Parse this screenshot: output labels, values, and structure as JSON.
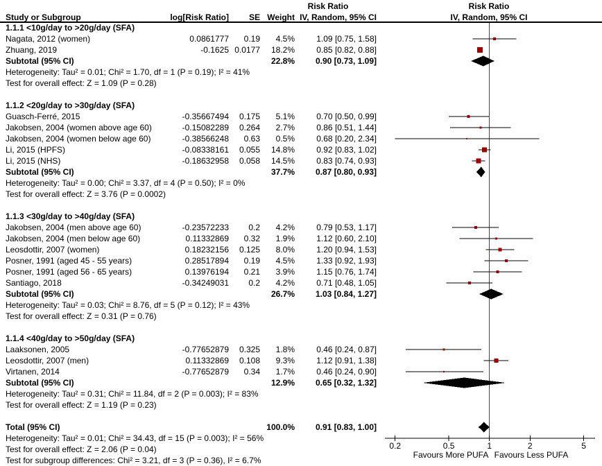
{
  "header": {
    "col_study": "Study or Subgroup",
    "col_logrr": "log[Risk Ratio]",
    "col_se": "SE",
    "col_weight": "Weight",
    "col_effect_line1": "Risk Ratio",
    "col_effect_line2": "IV, Random, 95% CI",
    "plot_line1": "Risk Ratio",
    "plot_line2": "IV, Random, 95% CI"
  },
  "axis": {
    "ticks": [
      0.2,
      0.5,
      1,
      2,
      5
    ],
    "left_label": "Favours More PUFA",
    "right_label": "Favours Less PUFA"
  },
  "colors": {
    "marker": "#a00000",
    "diamond": "#000000",
    "line": "#000000",
    "no_effect_line": "#444444"
  },
  "chart_data": {
    "type": "forest",
    "scale": "log",
    "x_range": [
      0.2,
      5
    ],
    "effect_measure": "Risk Ratio",
    "method": "IV, Random, 95% CI",
    "sections": [
      {
        "label": "1.1.1 <10g/day to >20g/day (SFA)",
        "studies": [
          {
            "name": "Nagata, 2012 (women)",
            "log_rr": "0.0861777",
            "se": "0.19",
            "weight_pct": 4.5,
            "rr": 1.09,
            "ci_low": 0.75,
            "ci_high": 1.58
          },
          {
            "name": "Zhuang, 2019",
            "log_rr": "-0.1625",
            "se": "0.0177",
            "weight_pct": 18.2,
            "rr": 0.85,
            "ci_low": 0.82,
            "ci_high": 0.88
          }
        ],
        "subtotal": {
          "label": "Subtotal (95% CI)",
          "weight_pct": 22.8,
          "rr": 0.9,
          "ci_low": 0.73,
          "ci_high": 1.09
        },
        "heterogeneity": "Heterogeneity: Tau² = 0.01; Chi² = 1.70, df = 1 (P = 0.19); I² = 41%",
        "overall_effect": "Test for overall effect: Z = 1.09 (P = 0.28)"
      },
      {
        "label": "1.1.2 <20g/day to >30g/day (SFA)",
        "studies": [
          {
            "name": "Guasch-Ferré, 2015",
            "log_rr": "-0.35667494",
            "se": "0.175",
            "weight_pct": 5.1,
            "rr": 0.7,
            "ci_low": 0.5,
            "ci_high": 0.99
          },
          {
            "name": "Jakobsen, 2004 (women above age 60)",
            "log_rr": "-0.15082289",
            "se": "0.264",
            "weight_pct": 2.7,
            "rr": 0.86,
            "ci_low": 0.51,
            "ci_high": 1.44
          },
          {
            "name": "Jakobsen, 2004 (women below age 60)",
            "log_rr": "-0.38566248",
            "se": "0.63",
            "weight_pct": 0.5,
            "rr": 0.68,
            "ci_low": 0.2,
            "ci_high": 2.34
          },
          {
            "name": "Li, 2015 (HPFS)",
            "log_rr": "-0.08338161",
            "se": "0.055",
            "weight_pct": 14.8,
            "rr": 0.92,
            "ci_low": 0.83,
            "ci_high": 1.02
          },
          {
            "name": "Li, 2015 (NHS)",
            "log_rr": "-0.18632958",
            "se": "0.058",
            "weight_pct": 14.5,
            "rr": 0.83,
            "ci_low": 0.74,
            "ci_high": 0.93
          }
        ],
        "subtotal": {
          "label": "Subtotal (95% CI)",
          "weight_pct": 37.7,
          "rr": 0.87,
          "ci_low": 0.8,
          "ci_high": 0.93
        },
        "heterogeneity": "Heterogeneity: Tau² = 0.00; Chi² = 3.37, df = 4 (P = 0.50); I² = 0%",
        "overall_effect": "Test for overall effect: Z = 3.76 (P = 0.0002)"
      },
      {
        "label": "1.1.3 <30g/day to >40g/day (SFA)",
        "studies": [
          {
            "name": "Jakobsen, 2004 (men above age 60)",
            "log_rr": "-0.23572233",
            "se": "0.2",
            "weight_pct": 4.2,
            "rr": 0.79,
            "ci_low": 0.53,
            "ci_high": 1.17
          },
          {
            "name": "Jakobsen, 2004 (men below age 60)",
            "log_rr": "0.11332869",
            "se": "0.32",
            "weight_pct": 1.9,
            "rr": 1.12,
            "ci_low": 0.6,
            "ci_high": 2.1
          },
          {
            "name": "Leosdottir, 2007 (women)",
            "log_rr": "0.18232156",
            "se": "0.125",
            "weight_pct": 8.0,
            "rr": 1.2,
            "ci_low": 0.94,
            "ci_high": 1.53
          },
          {
            "name": "Posner, 1991 (aged 45 - 55 years)",
            "log_rr": "0.28517894",
            "se": "0.19",
            "weight_pct": 4.5,
            "rr": 1.33,
            "ci_low": 0.92,
            "ci_high": 1.93
          },
          {
            "name": "Posner, 1991 (aged 56 - 65 years)",
            "log_rr": "0.13976194",
            "se": "0.21",
            "weight_pct": 3.9,
            "rr": 1.15,
            "ci_low": 0.76,
            "ci_high": 1.74
          },
          {
            "name": "Santiago, 2018",
            "log_rr": "-0.34249031",
            "se": "0.2",
            "weight_pct": 4.2,
            "rr": 0.71,
            "ci_low": 0.48,
            "ci_high": 1.05
          }
        ],
        "subtotal": {
          "label": "Subtotal (95% CI)",
          "weight_pct": 26.7,
          "rr": 1.03,
          "ci_low": 0.84,
          "ci_high": 1.27
        },
        "heterogeneity": "Heterogeneity: Tau² = 0.03; Chi² = 8.76, df = 5 (P = 0.12); I² = 43%",
        "overall_effect": "Test for overall effect: Z = 0.31 (P = 0.76)"
      },
      {
        "label": "1.1.4 <40g/day to >50g/day (SFA)",
        "studies": [
          {
            "name": "Laaksonen, 2005",
            "log_rr": "-0.77652879",
            "se": "0.325",
            "weight_pct": 1.8,
            "rr": 0.46,
            "ci_low": 0.24,
            "ci_high": 0.87
          },
          {
            "name": "Leosdottir, 2007 (men)",
            "log_rr": "0.11332869",
            "se": "0.108",
            "weight_pct": 9.3,
            "rr": 1.12,
            "ci_low": 0.91,
            "ci_high": 1.38
          },
          {
            "name": "Virtanen, 2014",
            "log_rr": "-0.77652879",
            "se": "0.34",
            "weight_pct": 1.7,
            "rr": 0.46,
            "ci_low": 0.24,
            "ci_high": 0.9
          }
        ],
        "subtotal": {
          "label": "Subtotal (95% CI)",
          "weight_pct": 12.9,
          "rr": 0.65,
          "ci_low": 0.32,
          "ci_high": 1.32
        },
        "heterogeneity": "Heterogeneity: Tau² = 0.31; Chi² = 11.84, df = 2 (P = 0.003); I² = 83%",
        "overall_effect": "Test for overall effect: Z = 1.19 (P = 0.23)"
      }
    ],
    "total": {
      "label": "Total (95% CI)",
      "weight_pct": 100.0,
      "rr": 0.91,
      "ci_low": 0.83,
      "ci_high": 1.0
    },
    "total_heterogeneity": "Heterogeneity: Tau² = 0.01; Chi² = 34.43, df = 15 (P = 0.003); I² = 56%",
    "total_overall_effect": "Test for overall effect: Z = 2.06 (P = 0.04)",
    "subgroup_differences": "Test for subgroup differences: Chi² = 3.21, df = 3 (P = 0.36), I² = 6.7%"
  }
}
